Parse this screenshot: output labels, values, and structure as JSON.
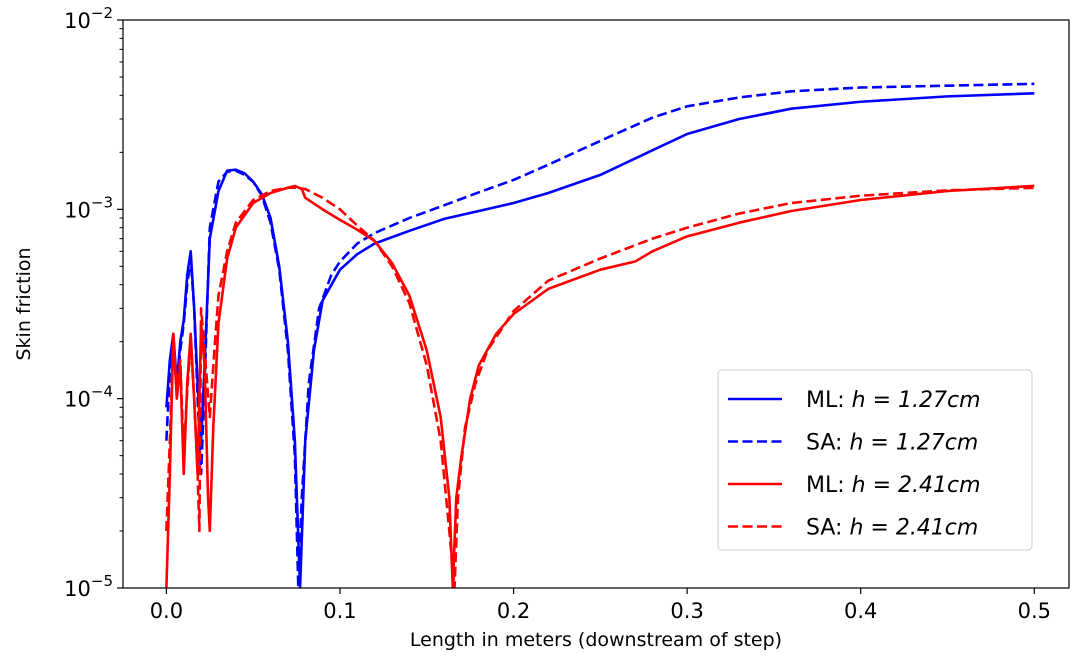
{
  "chart_data": {
    "type": "line",
    "title": "",
    "xlabel": "Length in meters (downstream of step)",
    "ylabel": "Skin friction",
    "xlim": [
      -0.025,
      0.52
    ],
    "ylim": [
      1e-05,
      0.01
    ],
    "yscale": "log",
    "grid": false,
    "legend_position": "bottom-right",
    "x_ticks": [
      {
        "value": 0.0,
        "label": "0.0"
      },
      {
        "value": 0.1,
        "label": "0.1"
      },
      {
        "value": 0.2,
        "label": "0.2"
      },
      {
        "value": 0.3,
        "label": "0.3"
      },
      {
        "value": 0.4,
        "label": "0.4"
      },
      {
        "value": 0.5,
        "label": "0.5"
      }
    ],
    "y_ticks": [
      {
        "value": 1e-05,
        "base": "10",
        "exp": "−5"
      },
      {
        "value": 0.0001,
        "base": "10",
        "exp": "−4"
      },
      {
        "value": 0.001,
        "base": "10",
        "exp": "−3"
      },
      {
        "value": 0.01,
        "base": "10",
        "exp": "−2"
      }
    ],
    "series": [
      {
        "name": "ML: h = 1.27cm",
        "legend_prefix": "ML: ",
        "legend_math": "h = 1.27cm",
        "color": "#0000ff",
        "style": "solid",
        "points": [
          [
            0.0,
            9e-05
          ],
          [
            0.002,
            0.00016
          ],
          [
            0.004,
            0.00022
          ],
          [
            0.006,
            0.00012
          ],
          [
            0.008,
            0.0002
          ],
          [
            0.01,
            0.00026
          ],
          [
            0.012,
            0.00045
          ],
          [
            0.014,
            0.0006
          ],
          [
            0.016,
            0.0003
          ],
          [
            0.018,
            0.00012
          ],
          [
            0.02,
            6e-05
          ],
          [
            0.022,
            0.00015
          ],
          [
            0.025,
            0.0007
          ],
          [
            0.03,
            0.00125
          ],
          [
            0.035,
            0.0016
          ],
          [
            0.04,
            0.00162
          ],
          [
            0.045,
            0.00155
          ],
          [
            0.05,
            0.0014
          ],
          [
            0.055,
            0.0012
          ],
          [
            0.06,
            0.0009
          ],
          [
            0.065,
            0.0005
          ],
          [
            0.07,
            0.0002
          ],
          [
            0.074,
            6e-05
          ],
          [
            0.077,
            1e-05
          ],
          [
            0.08,
            6e-05
          ],
          [
            0.085,
            0.00018
          ],
          [
            0.09,
            0.00033
          ],
          [
            0.1,
            0.00048
          ],
          [
            0.11,
            0.00058
          ],
          [
            0.12,
            0.00066
          ],
          [
            0.14,
            0.00077
          ],
          [
            0.16,
            0.00089
          ],
          [
            0.18,
            0.00098
          ],
          [
            0.2,
            0.00108
          ],
          [
            0.22,
            0.00122
          ],
          [
            0.25,
            0.00152
          ],
          [
            0.28,
            0.00205
          ],
          [
            0.3,
            0.0025
          ],
          [
            0.33,
            0.003
          ],
          [
            0.36,
            0.0034
          ],
          [
            0.4,
            0.0037
          ],
          [
            0.45,
            0.00395
          ],
          [
            0.5,
            0.0041
          ]
        ]
      },
      {
        "name": "SA: h = 1.27cm",
        "legend_prefix": "SA: ",
        "legend_math": "h = 1.27cm",
        "color": "#0000ff",
        "style": "dashed",
        "points": [
          [
            0.0,
            6e-05
          ],
          [
            0.002,
            0.00014
          ],
          [
            0.004,
            0.0002
          ],
          [
            0.006,
            0.00011
          ],
          [
            0.008,
            0.00018
          ],
          [
            0.01,
            0.00025
          ],
          [
            0.012,
            0.0004
          ],
          [
            0.014,
            0.00055
          ],
          [
            0.016,
            0.0003
          ],
          [
            0.018,
            0.0001
          ],
          [
            0.02,
            4e-05
          ],
          [
            0.022,
            0.00012
          ],
          [
            0.025,
            0.0008
          ],
          [
            0.03,
            0.0014
          ],
          [
            0.035,
            0.00158
          ],
          [
            0.04,
            0.0016
          ],
          [
            0.045,
            0.00152
          ],
          [
            0.05,
            0.0014
          ],
          [
            0.055,
            0.00118
          ],
          [
            0.06,
            0.00085
          ],
          [
            0.065,
            0.00048
          ],
          [
            0.07,
            0.00018
          ],
          [
            0.074,
            5e-05
          ],
          [
            0.076,
            1e-05
          ],
          [
            0.078,
            3e-05
          ],
          [
            0.082,
            0.00012
          ],
          [
            0.088,
            0.0003
          ],
          [
            0.095,
            0.00045
          ],
          [
            0.1,
            0.00053
          ],
          [
            0.11,
            0.00066
          ],
          [
            0.12,
            0.00075
          ],
          [
            0.14,
            0.0009
          ],
          [
            0.16,
            0.00105
          ],
          [
            0.18,
            0.00123
          ],
          [
            0.2,
            0.00143
          ],
          [
            0.22,
            0.00172
          ],
          [
            0.25,
            0.0023
          ],
          [
            0.28,
            0.00305
          ],
          [
            0.3,
            0.0035
          ],
          [
            0.33,
            0.0039
          ],
          [
            0.36,
            0.0042
          ],
          [
            0.4,
            0.0044
          ],
          [
            0.45,
            0.0045
          ],
          [
            0.5,
            0.0046
          ]
        ]
      },
      {
        "name": "ML: h = 2.41cm",
        "legend_prefix": "ML: ",
        "legend_math": "h = 2.41cm",
        "color": "#ff0000",
        "style": "solid",
        "points": [
          [
            0.0,
            1e-05
          ],
          [
            0.002,
            4e-05
          ],
          [
            0.004,
            0.00022
          ],
          [
            0.006,
            0.0001
          ],
          [
            0.008,
            0.00015
          ],
          [
            0.01,
            4e-05
          ],
          [
            0.012,
            0.00012
          ],
          [
            0.014,
            0.00022
          ],
          [
            0.016,
            0.0001
          ],
          [
            0.018,
            4e-05
          ],
          [
            0.02,
            0.00025
          ],
          [
            0.022,
            0.00015
          ],
          [
            0.024,
            3e-05
          ],
          [
            0.025,
            2e-05
          ],
          [
            0.027,
            7e-05
          ],
          [
            0.03,
            0.00025
          ],
          [
            0.035,
            0.00055
          ],
          [
            0.04,
            0.0008
          ],
          [
            0.05,
            0.00108
          ],
          [
            0.06,
            0.00122
          ],
          [
            0.07,
            0.0013
          ],
          [
            0.074,
            0.00133
          ],
          [
            0.078,
            0.00128
          ],
          [
            0.08,
            0.00115
          ],
          [
            0.09,
            0.001
          ],
          [
            0.1,
            0.00088
          ],
          [
            0.11,
            0.00078
          ],
          [
            0.12,
            0.00068
          ],
          [
            0.13,
            0.00052
          ],
          [
            0.14,
            0.00035
          ],
          [
            0.15,
            0.00018
          ],
          [
            0.158,
            8e-05
          ],
          [
            0.163,
            3e-05
          ],
          [
            0.165,
            1e-05
          ],
          [
            0.167,
            3e-05
          ],
          [
            0.17,
            5e-05
          ],
          [
            0.175,
            0.0001
          ],
          [
            0.18,
            0.00015
          ],
          [
            0.19,
            0.00022
          ],
          [
            0.2,
            0.00028
          ],
          [
            0.22,
            0.00038
          ],
          [
            0.25,
            0.00048
          ],
          [
            0.27,
            0.00053
          ],
          [
            0.28,
            0.0006
          ],
          [
            0.3,
            0.00072
          ],
          [
            0.33,
            0.00085
          ],
          [
            0.36,
            0.00098
          ],
          [
            0.4,
            0.00112
          ],
          [
            0.45,
            0.00125
          ],
          [
            0.5,
            0.00133
          ]
        ]
      },
      {
        "name": "SA: h = 2.41cm",
        "legend_prefix": "SA: ",
        "legend_math": "h = 2.41cm",
        "color": "#ff0000",
        "style": "dashed",
        "points": [
          [
            0.0,
            2e-05
          ],
          [
            0.002,
            6e-05
          ],
          [
            0.004,
            0.0002
          ],
          [
            0.006,
            0.00011
          ],
          [
            0.008,
            0.00016
          ],
          [
            0.01,
            5e-05
          ],
          [
            0.012,
            0.00011
          ],
          [
            0.014,
            0.0002
          ],
          [
            0.016,
            0.0001
          ],
          [
            0.018,
            4e-05
          ],
          [
            0.019,
            2e-05
          ],
          [
            0.02,
            0.0003
          ],
          [
            0.022,
            0.00018
          ],
          [
            0.025,
            8e-05
          ],
          [
            0.028,
            0.0002
          ],
          [
            0.03,
            0.00035
          ],
          [
            0.035,
            0.0006
          ],
          [
            0.04,
            0.00085
          ],
          [
            0.05,
            0.00112
          ],
          [
            0.06,
            0.00125
          ],
          [
            0.07,
            0.0013
          ],
          [
            0.075,
            0.0013
          ],
          [
            0.08,
            0.00128
          ],
          [
            0.09,
            0.00115
          ],
          [
            0.1,
            0.001
          ],
          [
            0.11,
            0.00082
          ],
          [
            0.12,
            0.00068
          ],
          [
            0.13,
            0.0005
          ],
          [
            0.14,
            0.00032
          ],
          [
            0.15,
            0.00015
          ],
          [
            0.158,
            6e-05
          ],
          [
            0.163,
            2e-05
          ],
          [
            0.166,
            1e-05
          ],
          [
            0.168,
            3e-05
          ],
          [
            0.172,
            7e-05
          ],
          [
            0.178,
            0.00012
          ],
          [
            0.185,
            0.00018
          ],
          [
            0.2,
            0.00029
          ],
          [
            0.22,
            0.00042
          ],
          [
            0.25,
            0.00055
          ],
          [
            0.28,
            0.0007
          ],
          [
            0.3,
            0.0008
          ],
          [
            0.33,
            0.00095
          ],
          [
            0.36,
            0.00108
          ],
          [
            0.4,
            0.00118
          ],
          [
            0.45,
            0.00126
          ],
          [
            0.5,
            0.0013
          ]
        ]
      }
    ]
  }
}
